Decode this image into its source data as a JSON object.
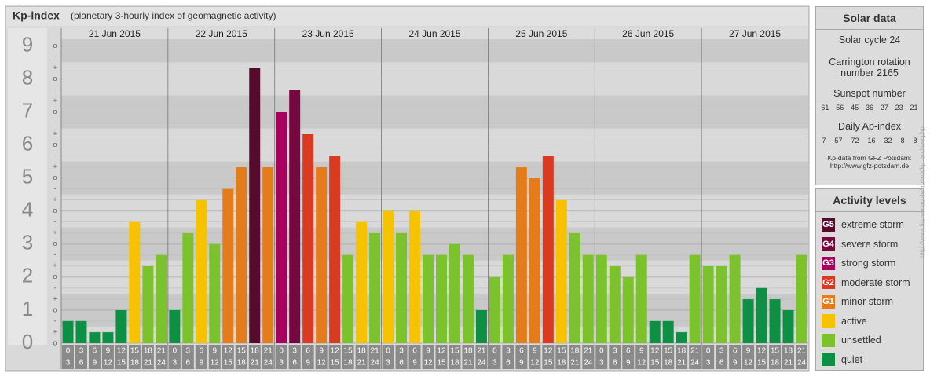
{
  "header": {
    "title": "Kp-index",
    "subtitle": "(planetary 3-hourly index of geomagnetic activity)"
  },
  "chart_data": {
    "type": "bar",
    "days": [
      "21 Jun 2015",
      "22 Jun 2015",
      "23 Jun 2015",
      "24 Jun 2015",
      "25 Jun 2015",
      "26 Jun 2015",
      "27 Jun 2015"
    ],
    "time_slots": [
      [
        "0",
        "3"
      ],
      [
        "3",
        "6"
      ],
      [
        "6",
        "9"
      ],
      [
        "9",
        "12"
      ],
      [
        "12",
        "15"
      ],
      [
        "15",
        "18"
      ],
      [
        "18",
        "21"
      ],
      [
        "21",
        "24"
      ]
    ],
    "values": [
      0.67,
      0.67,
      0.33,
      0.33,
      1,
      3.67,
      2.33,
      2.67,
      1,
      3.33,
      4.33,
      3,
      4.67,
      5.33,
      8.33,
      5.33,
      7,
      7.67,
      6.33,
      5.33,
      5.67,
      2.67,
      3.67,
      3.33,
      4,
      3.33,
      4,
      2.67,
      2.67,
      3,
      2.67,
      1,
      2,
      2.67,
      5.33,
      5,
      5.67,
      4.33,
      3.33,
      2.67,
      2.67,
      2.33,
      2,
      2.67,
      0.67,
      0.67,
      0.33,
      2.67,
      2.33,
      2.33,
      2.67,
      1.33,
      1.67,
      1.33,
      1,
      2.67
    ],
    "colors": [
      "#0d8f44",
      "#0d8f44",
      "#0d8f44",
      "#0d8f44",
      "#0d8f44",
      "#f7c300",
      "#7cc22c",
      "#7cc22c",
      "#0d8f44",
      "#7cc22c",
      "#f7c300",
      "#7cc22c",
      "#e57c1c",
      "#e57c1c",
      "#560a2c",
      "#e57c1c",
      "#a8005f",
      "#76073f",
      "#d93a22",
      "#e57c1c",
      "#d93a22",
      "#7cc22c",
      "#f7c300",
      "#7cc22c",
      "#f7c300",
      "#7cc22c",
      "#f7c300",
      "#7cc22c",
      "#7cc22c",
      "#7cc22c",
      "#7cc22c",
      "#0d8f44",
      "#7cc22c",
      "#7cc22c",
      "#e57c1c",
      "#e57c1c",
      "#d93a22",
      "#f7c300",
      "#7cc22c",
      "#7cc22c",
      "#7cc22c",
      "#7cc22c",
      "#7cc22c",
      "#7cc22c",
      "#0d8f44",
      "#0d8f44",
      "#0d8f44",
      "#7cc22c",
      "#7cc22c",
      "#7cc22c",
      "#7cc22c",
      "#0d8f44",
      "#0d8f44",
      "#0d8f44",
      "#0d8f44",
      "#7cc22c"
    ],
    "ylim": [
      0,
      9.2
    ],
    "yticks": [
      0,
      1,
      2,
      3,
      4,
      5,
      6,
      7,
      8,
      9
    ],
    "yminor": [
      "-",
      "o",
      "+"
    ],
    "grid": true
  },
  "solar_data": {
    "title": "Solar data",
    "cycle": "Solar cycle 24",
    "rotation": "Carrington rotation number 2165",
    "sunspot_title": "Sunspot number",
    "sunspot": [
      "61",
      "56",
      "45",
      "36",
      "27",
      "23",
      "21"
    ],
    "ap_title": "Daily Ap-index",
    "ap": [
      "7",
      "57",
      "72",
      "16",
      "32",
      "8",
      "8"
    ],
    "source": "Kp-data from GFZ Potsdam: http://www.gfz-potsdam.de"
  },
  "activity_levels": {
    "title": "Activity levels",
    "items": [
      {
        "code": "G5",
        "label": "extreme storm",
        "color": "#560a2c"
      },
      {
        "code": "G4",
        "label": "severe storm",
        "color": "#76073f"
      },
      {
        "code": "G3",
        "label": "strong storm",
        "color": "#a8005f"
      },
      {
        "code": "G2",
        "label": "moderate storm",
        "color": "#d93a22"
      },
      {
        "code": "G1",
        "label": "minor storm",
        "color": "#e57c1c"
      },
      {
        "label": "active",
        "color": "#f7c300"
      },
      {
        "label": "unsettled",
        "color": "#7cc22c"
      },
      {
        "label": "quiet",
        "color": "#0d8f44"
      }
    ]
  },
  "credit": "http://www.fitz-verlag.de/aurora/kp_archive.php"
}
